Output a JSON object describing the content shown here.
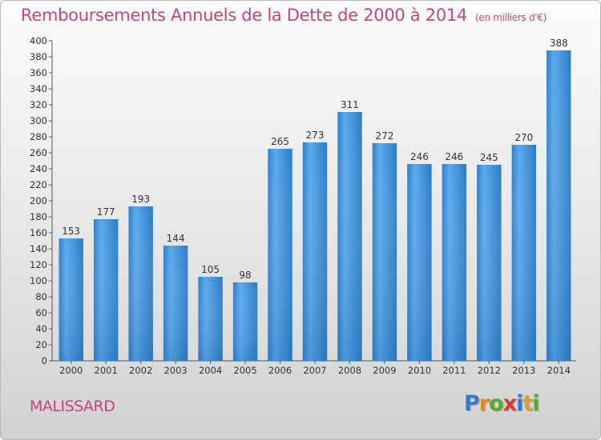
{
  "title": "Remboursements Annuels de la Dette de 2000 à 2014",
  "unit": "(en milliers d'€)",
  "commune": "MALISSARD",
  "logo": {
    "letters": [
      "P",
      "r",
      "o",
      "x",
      "i",
      "t",
      "i"
    ],
    "colors": [
      "#3a78c9",
      "#e08a1e",
      "#58a832",
      "#d23b3b",
      "#3a78c9",
      "#e0a020",
      "#58a832"
    ]
  },
  "colors": {
    "bar": "#3f94db",
    "title": "#c8437e"
  },
  "chart_data": {
    "type": "bar",
    "title": "Remboursements Annuels de la Dette de 2000 à 2014",
    "categories": [
      "2000",
      "2001",
      "2002",
      "2003",
      "2004",
      "2005",
      "2006",
      "2007",
      "2008",
      "2009",
      "2010",
      "2011",
      "2012",
      "2013",
      "2014"
    ],
    "values": [
      153,
      177,
      193,
      144,
      105,
      98,
      265,
      273,
      311,
      272,
      246,
      246,
      245,
      270,
      388
    ],
    "ylim": [
      0,
      400
    ],
    "ytick_step": 20,
    "grid": false
  }
}
